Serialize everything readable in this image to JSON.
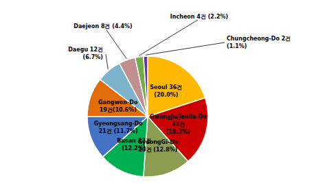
{
  "chart_data": {
    "type": "pie",
    "values": [
      36,
      33,
      23,
      22,
      21,
      19,
      12,
      8,
      4,
      2
    ],
    "value_labels": [
      "Seoul 36건\n(20.0%)",
      "Gwangju/Jeolla-Do\n33건\n(18.3%)",
      "GyeongGi-Do\n23건 (12.8%)",
      "Busan 22건\n(12.2%)",
      "Gyeongsang-Do\n21건 (11.7%)",
      "Gangwon-Do\n19건(10.6%)",
      "Daegu 12건\n(6.7%)",
      "Daejeon 8건 (4.4%)",
      "Incheon 4건 (2.2%)",
      "Chungcheong-Do 2건\n(1.1%)"
    ],
    "colors": [
      "#FFB800",
      "#CC0000",
      "#8B9E50",
      "#00B050",
      "#4472C4",
      "#E26B0A",
      "#7EB4CB",
      "#C09090",
      "#70AD47",
      "#7030A0"
    ],
    "data_labels": true
  }
}
